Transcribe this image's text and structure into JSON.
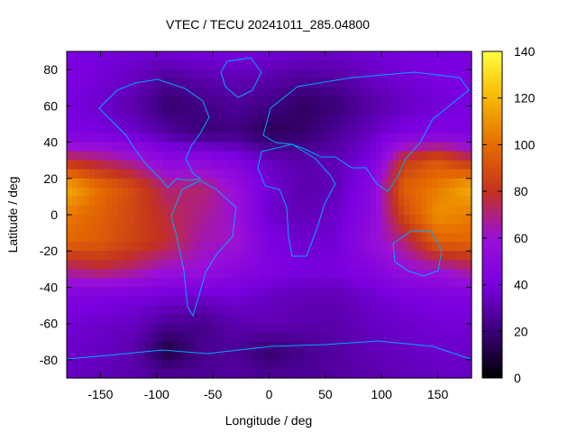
{
  "chart_data": {
    "type": "heatmap",
    "title": "VTEC / TECU 20241011_285.04800",
    "xlabel": "Longitude / deg",
    "ylabel": "Latitude / deg",
    "xlim": [
      -180,
      180
    ],
    "ylim": [
      -90,
      90
    ],
    "xticks": [
      -150,
      -100,
      -50,
      0,
      50,
      100,
      150
    ],
    "yticks": [
      -80,
      -60,
      -40,
      -20,
      0,
      20,
      40,
      60,
      80
    ],
    "colorbar": {
      "range": [
        0,
        140
      ],
      "ticks": [
        0,
        20,
        40,
        60,
        80,
        100,
        120,
        140
      ],
      "palette": [
        "#000000",
        "#3a0078",
        "#7a00e0",
        "#9a10d8",
        "#c4321e",
        "#e66c00",
        "#f5b800",
        "#ffff40"
      ]
    },
    "grid_lon": [
      -180,
      -150,
      -120,
      -90,
      -60,
      -30,
      0,
      30,
      60,
      90,
      120,
      150,
      180
    ],
    "grid_lat": [
      90,
      75,
      60,
      45,
      30,
      15,
      0,
      -15,
      -30,
      -45,
      -60,
      -75,
      -90
    ],
    "z": [
      [
        42,
        40,
        38,
        38,
        40,
        40,
        38,
        36,
        36,
        38,
        40,
        40,
        42
      ],
      [
        42,
        38,
        34,
        26,
        30,
        32,
        30,
        26,
        28,
        34,
        38,
        40,
        42
      ],
      [
        40,
        36,
        30,
        18,
        22,
        26,
        22,
        16,
        20,
        28,
        34,
        38,
        40
      ],
      [
        42,
        40,
        36,
        28,
        20,
        22,
        14,
        18,
        26,
        34,
        42,
        44,
        42
      ],
      [
        78,
        72,
        64,
        50,
        52,
        44,
        34,
        30,
        32,
        40,
        82,
        92,
        78
      ],
      [
        118,
        100,
        88,
        70,
        72,
        58,
        38,
        30,
        32,
        48,
        96,
        104,
        118
      ],
      [
        104,
        96,
        86,
        76,
        68,
        60,
        36,
        32,
        36,
        50,
        88,
        110,
        104
      ],
      [
        98,
        94,
        86,
        78,
        64,
        62,
        42,
        36,
        38,
        56,
        70,
        96,
        98
      ],
      [
        70,
        76,
        70,
        60,
        60,
        50,
        44,
        40,
        40,
        46,
        58,
        62,
        70
      ],
      [
        44,
        42,
        40,
        38,
        36,
        38,
        34,
        32,
        32,
        36,
        40,
        42,
        44
      ],
      [
        38,
        36,
        34,
        26,
        24,
        30,
        32,
        30,
        30,
        34,
        36,
        38,
        38
      ],
      [
        36,
        34,
        30,
        10,
        24,
        26,
        18,
        24,
        28,
        32,
        34,
        36,
        36
      ],
      [
        34,
        32,
        30,
        28,
        26,
        28,
        26,
        26,
        28,
        30,
        32,
        34,
        34
      ]
    ]
  }
}
